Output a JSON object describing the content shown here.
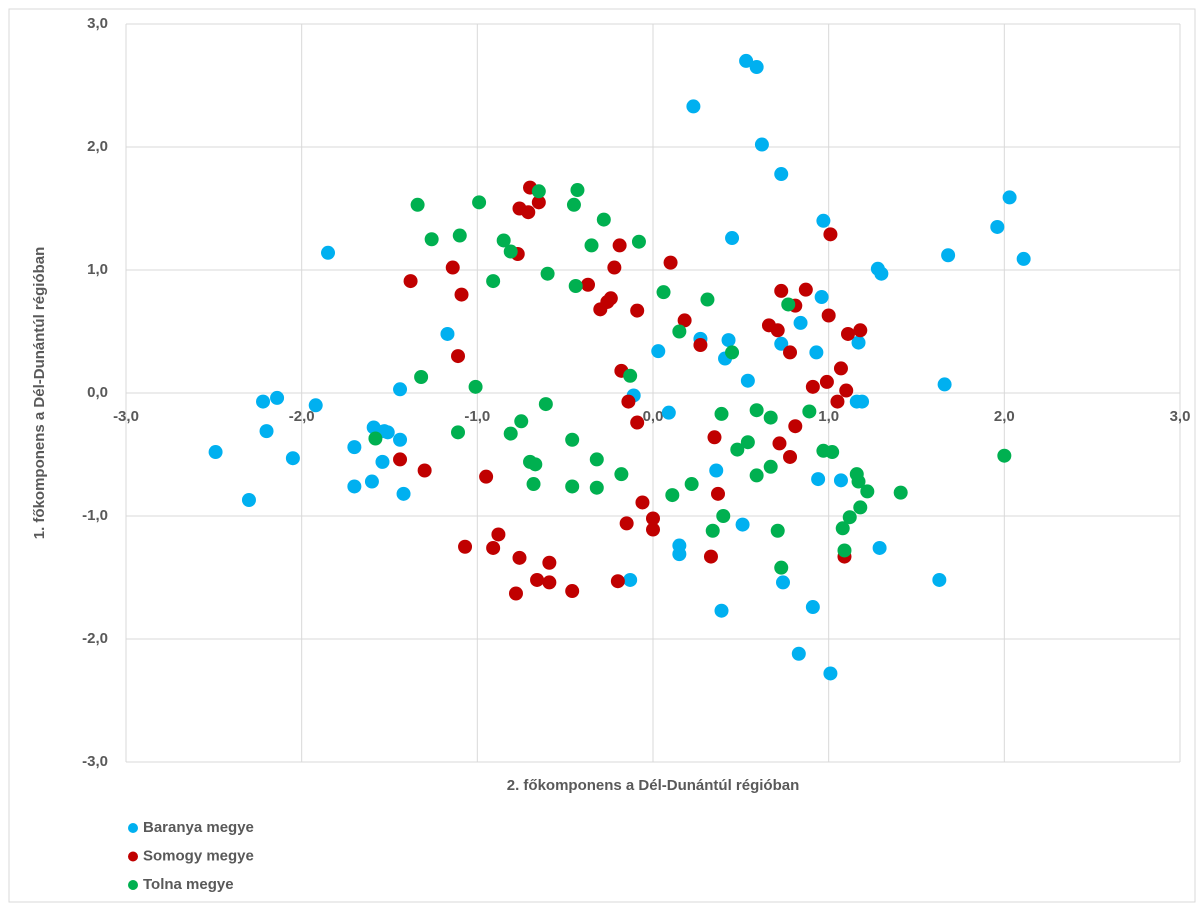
{
  "chart_data": {
    "type": "scatter",
    "x_label": "2. főkomponens a Dél-Dunántúl régióban",
    "y_label": "1. főkomponens a Dél-Dunántúl régióban",
    "xlim": [
      -3,
      3
    ],
    "ylim": [
      -3,
      3
    ],
    "xticks": [
      {
        "value": -3,
        "label": "-3,0"
      },
      {
        "value": -2,
        "label": "-2,0"
      },
      {
        "value": -1,
        "label": "-1,0"
      },
      {
        "value": 0,
        "label": "0,0"
      },
      {
        "value": 1,
        "label": "1,0"
      },
      {
        "value": 2,
        "label": "2,0"
      },
      {
        "value": 3,
        "label": "3,0"
      }
    ],
    "yticks": [
      {
        "value": -3,
        "label": "-3,0"
      },
      {
        "value": -2,
        "label": "-2,0"
      },
      {
        "value": -1,
        "label": "-1,0"
      },
      {
        "value": 0,
        "label": "0,0"
      },
      {
        "value": 1,
        "label": "1,0"
      },
      {
        "value": 2,
        "label": "2,0"
      },
      {
        "value": 3,
        "label": "3,0"
      }
    ],
    "grid": true,
    "legend": "bottom-left",
    "series": [
      {
        "name": "Baranya megye",
        "color": "#00b0f0",
        "x": [
          0.53,
          0.59,
          0.23,
          0.62,
          0.73,
          2.03,
          0.97,
          1.96,
          0.45,
          -1.85,
          1.68,
          2.11,
          1.28,
          1.3,
          0.96,
          0.84,
          -1.17,
          0.27,
          0.43,
          1.17,
          0.73,
          0.03,
          0.93,
          0.41,
          0.54,
          1.66,
          -1.44,
          -0.11,
          -2.14,
          -2.22,
          -1.92,
          1.16,
          1.19,
          0.09,
          -2.2,
          -1.59,
          -1.53,
          -1.51,
          -1.44,
          -1.7,
          -2.49,
          -2.05,
          -1.54,
          0.36,
          -1.6,
          -1.7,
          0.94,
          1.07,
          -1.42,
          -2.3,
          0.51,
          0.15,
          0.15,
          1.29,
          -0.13,
          0.74,
          1.63,
          0.39,
          0.91,
          0.83,
          1.01
        ],
        "values": [
          2.7,
          2.65,
          2.33,
          2.02,
          1.78,
          1.59,
          1.4,
          1.35,
          1.26,
          1.14,
          1.12,
          1.09,
          1.01,
          0.97,
          0.78,
          0.57,
          0.48,
          0.44,
          0.43,
          0.41,
          0.4,
          0.34,
          0.33,
          0.28,
          0.1,
          0.07,
          0.03,
          -0.02,
          -0.04,
          -0.07,
          -0.1,
          -0.07,
          -0.07,
          -0.16,
          -0.31,
          -0.28,
          -0.31,
          -0.32,
          -0.38,
          -0.44,
          -0.48,
          -0.53,
          -0.56,
          -0.63,
          -0.72,
          -0.76,
          -0.7,
          -0.71,
          -0.82,
          -0.87,
          -1.07,
          -1.24,
          -1.31,
          -1.26,
          -1.52,
          -1.54,
          -1.52,
          -1.77,
          -1.74,
          -2.12,
          -2.28
        ]
      },
      {
        "name": "Somogy megye",
        "color": "#c00000",
        "x": [
          -0.7,
          -0.65,
          -0.76,
          -0.71,
          1.01,
          -0.19,
          -0.77,
          0.1,
          -0.22,
          -1.14,
          -1.38,
          -0.37,
          0.73,
          0.87,
          -1.09,
          -0.24,
          -0.26,
          0.81,
          -0.3,
          -0.09,
          1.0,
          0.18,
          0.66,
          0.71,
          1.18,
          1.11,
          0.27,
          0.78,
          -1.11,
          -0.18,
          1.07,
          0.99,
          0.91,
          1.1,
          1.05,
          -0.14,
          -0.09,
          0.81,
          0.35,
          0.72,
          -1.44,
          0.78,
          -1.3,
          0.37,
          -0.95,
          -0.06,
          0.0,
          -0.15,
          0.0,
          -0.88,
          -1.07,
          -0.91,
          -0.76,
          -0.59,
          0.33,
          1.09,
          -0.66,
          -0.59,
          -0.2,
          -0.78,
          -0.46
        ],
        "values": [
          1.67,
          1.55,
          1.5,
          1.47,
          1.29,
          1.2,
          1.13,
          1.06,
          1.02,
          1.02,
          0.91,
          0.88,
          0.83,
          0.84,
          0.8,
          0.77,
          0.74,
          0.71,
          0.68,
          0.67,
          0.63,
          0.59,
          0.55,
          0.51,
          0.51,
          0.48,
          0.39,
          0.33,
          0.3,
          0.18,
          0.2,
          0.09,
          0.05,
          0.02,
          -0.07,
          -0.07,
          -0.24,
          -0.27,
          -0.36,
          -0.41,
          -0.54,
          -0.52,
          -0.63,
          -0.82,
          -0.68,
          -0.89,
          -1.02,
          -1.06,
          -1.11,
          -1.15,
          -1.25,
          -1.26,
          -1.34,
          -1.38,
          -1.33,
          -1.33,
          -1.52,
          -1.54,
          -1.53,
          -1.63,
          -1.61
        ]
      },
      {
        "name": "Tolna megye",
        "color": "#00b050",
        "x": [
          -0.65,
          -0.43,
          -0.99,
          -1.34,
          -0.45,
          -0.28,
          -1.26,
          -1.1,
          -0.85,
          -0.08,
          -0.35,
          -0.81,
          -0.91,
          -0.6,
          -0.44,
          0.06,
          0.31,
          0.77,
          0.15,
          0.45,
          -1.32,
          -1.01,
          -0.13,
          -0.61,
          0.59,
          0.39,
          0.89,
          0.67,
          -0.75,
          -1.11,
          -0.81,
          -1.58,
          -0.46,
          0.54,
          0.48,
          0.97,
          1.02,
          -0.32,
          -0.7,
          -0.67,
          2.0,
          0.67,
          -0.18,
          0.59,
          1.16,
          1.17,
          -0.68,
          -0.46,
          -0.32,
          0.22,
          0.11,
          1.22,
          1.41,
          1.18,
          0.4,
          1.12,
          1.08,
          0.34,
          0.71,
          1.09,
          0.73
        ],
        "values": [
          1.64,
          1.65,
          1.55,
          1.53,
          1.53,
          1.41,
          1.25,
          1.28,
          1.24,
          1.23,
          1.2,
          1.15,
          0.91,
          0.97,
          0.87,
          0.82,
          0.76,
          0.72,
          0.5,
          0.33,
          0.13,
          0.05,
          0.14,
          -0.09,
          -0.14,
          -0.17,
          -0.15,
          -0.2,
          -0.23,
          -0.32,
          -0.33,
          -0.37,
          -0.38,
          -0.4,
          -0.46,
          -0.47,
          -0.48,
          -0.54,
          -0.56,
          -0.58,
          -0.51,
          -0.6,
          -0.66,
          -0.67,
          -0.66,
          -0.72,
          -0.74,
          -0.76,
          -0.77,
          -0.74,
          -0.83,
          -0.8,
          -0.81,
          -0.93,
          -1.0,
          -1.01,
          -1.1,
          -1.12,
          -1.12,
          -1.28,
          -1.42
        ]
      }
    ]
  }
}
